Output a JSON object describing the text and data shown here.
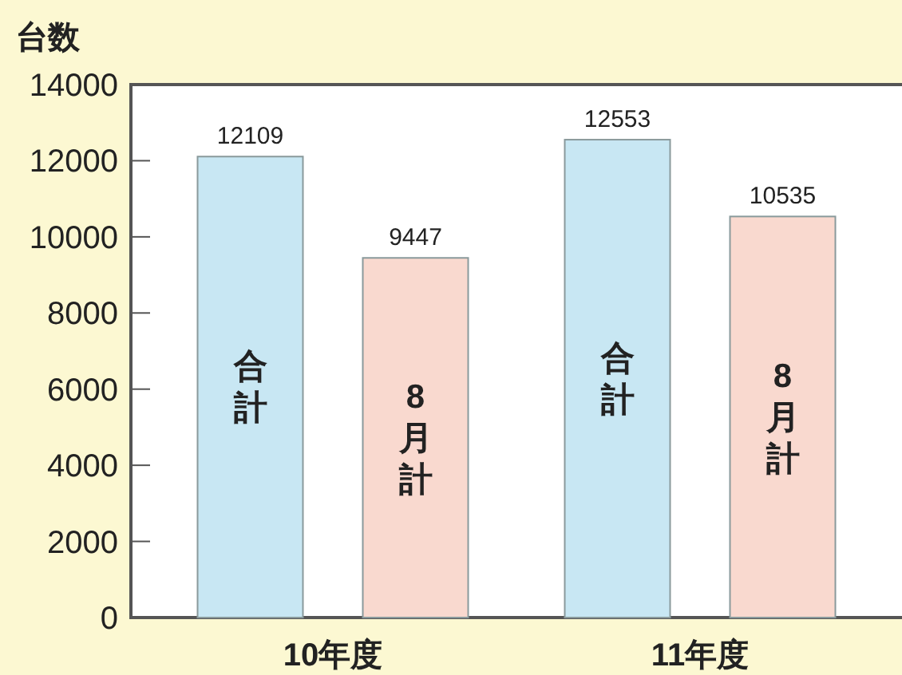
{
  "chart_data": {
    "type": "bar",
    "ylabel": "台数",
    "categories": [
      "10年度",
      "11年度"
    ],
    "series": [
      {
        "name": "合計",
        "color": "#c8e7f3",
        "values": [
          12109,
          12553
        ]
      },
      {
        "name": "8月計",
        "color": "#f9d9cf",
        "values": [
          9447,
          10535
        ]
      }
    ],
    "ylim": [
      0,
      14000
    ],
    "yticks": [
      0,
      2000,
      4000,
      6000,
      8000,
      10000,
      12000,
      14000
    ],
    "data_labels": true,
    "grid": false,
    "legend": false
  }
}
